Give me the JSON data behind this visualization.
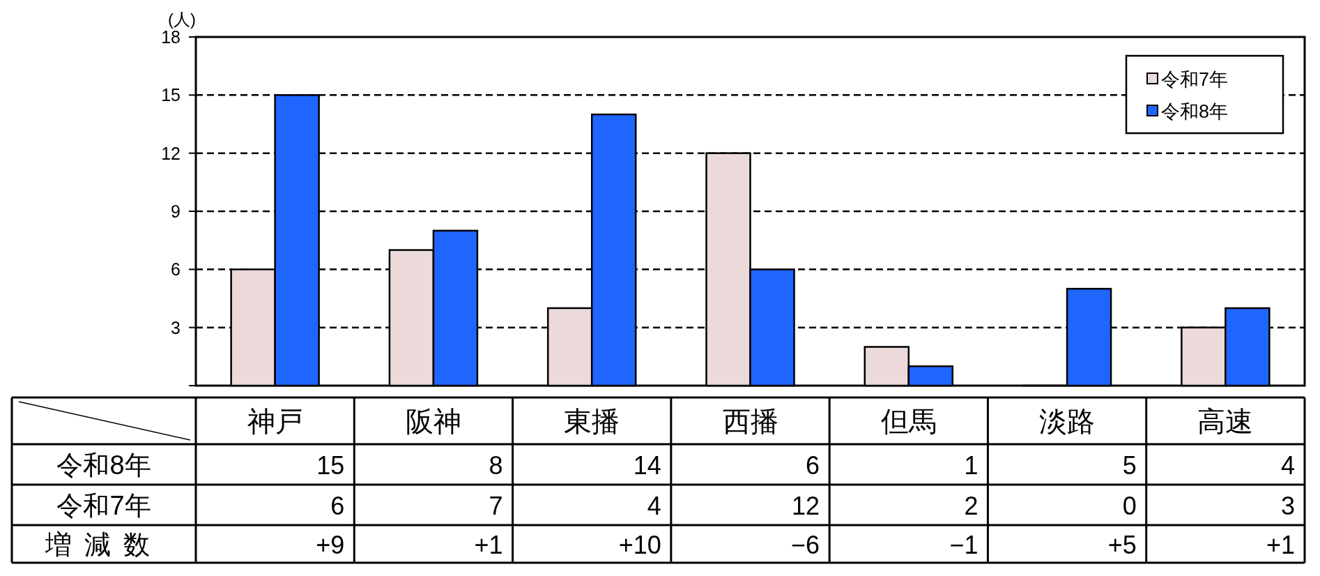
{
  "chart_data": {
    "type": "bar",
    "ylabel": "(人)",
    "categories": [
      "神戸",
      "阪神",
      "東播",
      "西播",
      "但馬",
      "淡路",
      "高速"
    ],
    "series": [
      {
        "name": "令和7年",
        "color": "#ecd9d9",
        "values": [
          6,
          7,
          4,
          12,
          2,
          0,
          3
        ]
      },
      {
        "name": "令和8年",
        "color": "#1f66ff",
        "values": [
          15,
          8,
          14,
          6,
          1,
          5,
          4
        ]
      }
    ],
    "ylim": [
      0,
      18
    ],
    "yticks": [
      {
        "value": 0,
        "label": null
      },
      3,
      6,
      9,
      12,
      15,
      18
    ],
    "grid": "y",
    "legend": "top right",
    "data_labels": true,
    "annotations": [
      "増減数",
      "+9",
      "+1",
      "+10",
      "−6",
      "−1",
      "+5",
      "+1"
    ]
  }
}
